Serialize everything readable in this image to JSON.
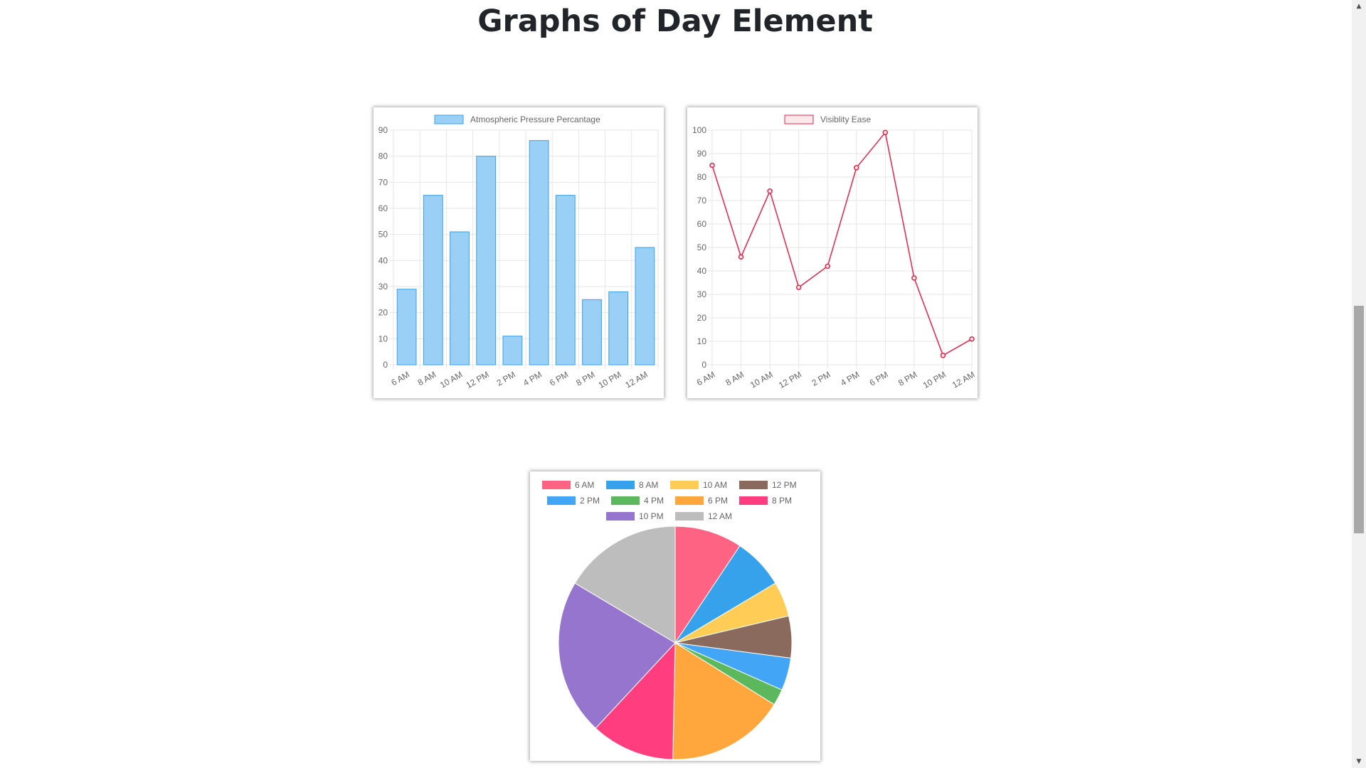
{
  "page": {
    "title": "Graphs of Day Element"
  },
  "chart_data": [
    {
      "type": "bar",
      "categories": [
        "6 AM",
        "8 AM",
        "10 AM",
        "12 PM",
        "2 PM",
        "4 PM",
        "6 PM",
        "8 PM",
        "10 PM",
        "12 AM"
      ],
      "series": [
        {
          "name": "Atmospheric Pressure Percantage",
          "values": [
            29,
            65,
            51,
            80,
            11,
            86,
            65,
            25,
            28,
            45
          ],
          "color": "#36a2eb",
          "fill": "#9ad0f5"
        }
      ],
      "ylim": [
        0,
        90
      ],
      "yticks": [
        0,
        10,
        20,
        30,
        40,
        50,
        60,
        70,
        80,
        90
      ],
      "grid": true,
      "legend": "top"
    },
    {
      "type": "line",
      "categories": [
        "6 AM",
        "8 AM",
        "10 AM",
        "12 PM",
        "2 PM",
        "4 PM",
        "6 PM",
        "8 PM",
        "10 PM",
        "12 AM"
      ],
      "series": [
        {
          "name": "Visiblity Ease",
          "values": [
            85,
            46,
            74,
            33,
            42,
            84,
            99,
            37,
            4,
            11
          ],
          "color": "#e8234a",
          "fill": "#fde8ec"
        }
      ],
      "ylim": [
        0,
        100
      ],
      "yticks": [
        0,
        10,
        20,
        30,
        40,
        50,
        60,
        70,
        80,
        90,
        100
      ],
      "grid": true,
      "legend": "top"
    },
    {
      "type": "pie",
      "categories": [
        "6 AM",
        "8 AM",
        "10 AM",
        "12 PM",
        "2 PM",
        "4 PM",
        "6 PM",
        "8 PM",
        "10 PM",
        "12 AM"
      ],
      "values": [
        29,
        22,
        15,
        18,
        14,
        7,
        51,
        36,
        67,
        51
      ],
      "colors": [
        "#ff6384",
        "#36a2eb",
        "#ffcd56",
        "#8a6a5c",
        "#42a5f5",
        "#5cb85c",
        "#ffa73d",
        "#ff3d7f",
        "#9575cd",
        "#bdbdbd"
      ],
      "legend": "top"
    }
  ]
}
